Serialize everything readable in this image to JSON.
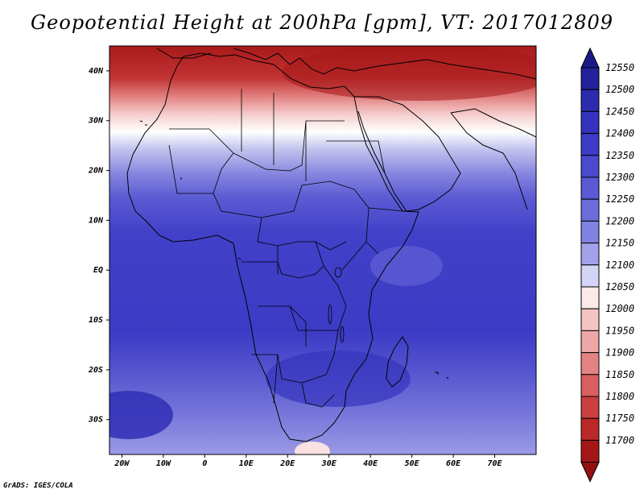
{
  "title": "Geopotential Height at 200hPa [gpm], VT: 2017012809",
  "credit": "GrADS: IGES/COLA",
  "map": {
    "region": "Africa and surrounding seas",
    "projection": "latlon",
    "lon_range": [
      -23,
      80
    ],
    "lat_range": [
      -37,
      45
    ],
    "boundaries": "coastlines and country borders",
    "field": "geopotential height 200 hPa",
    "lon_ticks": [
      "20W",
      "10W",
      "0",
      "10E",
      "20E",
      "30E",
      "40E",
      "50E",
      "60E",
      "70E"
    ],
    "lat_ticks": [
      "40N",
      "30N",
      "20N",
      "10N",
      "EQ",
      "10S",
      "20S",
      "30S"
    ]
  },
  "colorbar": {
    "levels": [
      "12550",
      "12500",
      "12450",
      "12400",
      "12350",
      "12300",
      "12250",
      "12200",
      "12150",
      "12100",
      "12050",
      "12000",
      "11950",
      "11900",
      "11850",
      "11800",
      "11750",
      "11700"
    ],
    "colors": [
      "#22229a",
      "#2b2bae",
      "#3333bd",
      "#3c3cc6",
      "#4a4acf",
      "#5a5ad6",
      "#6c6cdc",
      "#8282e2",
      "#a2a2ea",
      "#d4d4f6",
      "#fbeaea",
      "#f4c4c4",
      "#eea6a6",
      "#e48383",
      "#d85f5f",
      "#ca3f3f",
      "#ba2828",
      "#a51717"
    ],
    "top_arrow_color": "#1a1a88",
    "bottom_arrow_color": "#951010"
  }
}
